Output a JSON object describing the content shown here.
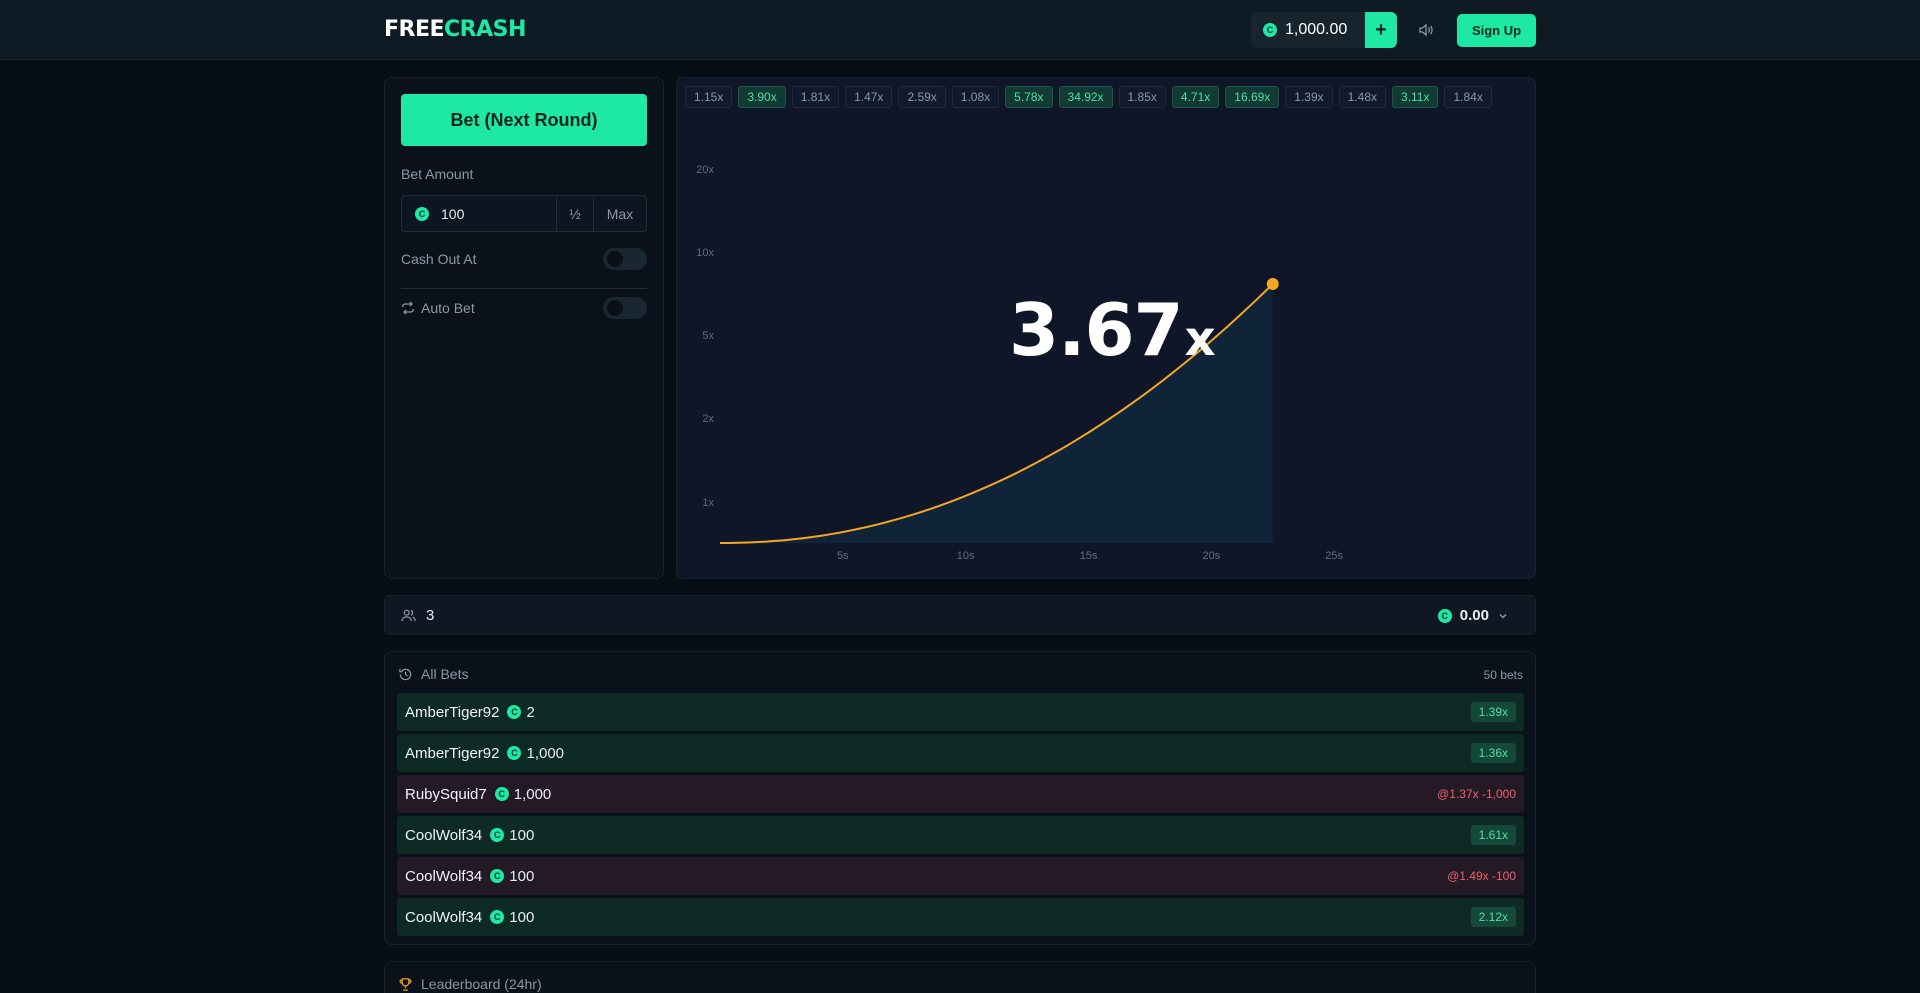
{
  "header": {
    "logo_part1": "FREE",
    "logo_part2": "CRASH",
    "balance": "1,000.00",
    "add_label": "+",
    "signup_label": "Sign Up"
  },
  "bet_panel": {
    "bet_button_label": "Bet (Next Round)",
    "bet_amount_label": "Bet Amount",
    "bet_amount_value": "100",
    "half_label": "½",
    "max_label": "Max",
    "cash_out_label": "Cash Out At",
    "auto_bet_label": "Auto Bet"
  },
  "history": [
    "1.15x",
    "3.90x",
    "1.81x",
    "1.47x",
    "2.59x",
    "1.08x",
    "5.78x",
    "34.92x",
    "1.85x",
    "4.71x",
    "16.69x",
    "1.39x",
    "1.48x",
    "3.11x",
    "1.84x"
  ],
  "history_good": [
    false,
    true,
    false,
    false,
    false,
    false,
    true,
    true,
    false,
    true,
    true,
    false,
    false,
    true,
    false
  ],
  "game": {
    "multiplier": "3.67",
    "multiplier_suffix": "x"
  },
  "chart_data": {
    "type": "line",
    "y_tick_labels": [
      "20x",
      "10x",
      "5x",
      "2x",
      "1x"
    ],
    "x_tick_labels": [
      "5s",
      "10s",
      "15s",
      "20s",
      "25s"
    ],
    "x_ticks": [
      5,
      10,
      15,
      20,
      25
    ],
    "xlim": [
      0,
      30
    ],
    "current_time_s": 22.5,
    "current_multiplier": 3.67,
    "line_color": "#f5a623"
  },
  "players": {
    "count": "3",
    "total": "0.00"
  },
  "bets": {
    "title": "All Bets",
    "count_label": "50 bets",
    "rows": [
      {
        "name": "AmberTiger92",
        "amount": "2",
        "result": "1.39x",
        "win": true
      },
      {
        "name": "AmberTiger92",
        "amount": "1,000",
        "result": "1.36x",
        "win": true
      },
      {
        "name": "RubySquid7",
        "amount": "1,000",
        "result": "@1.37x -1,000",
        "win": false
      },
      {
        "name": "CoolWolf34",
        "amount": "100",
        "result": "1.61x",
        "win": true
      },
      {
        "name": "CoolWolf34",
        "amount": "100",
        "result": "@1.49x -100",
        "win": false
      },
      {
        "name": "CoolWolf34",
        "amount": "100",
        "result": "2.12x",
        "win": true
      }
    ]
  },
  "leaderboard": {
    "title": "Leaderboard (24hr)"
  },
  "colors": {
    "accent": "#1de9a4",
    "loss": "#ef5f6a",
    "curve": "#f5a623"
  }
}
